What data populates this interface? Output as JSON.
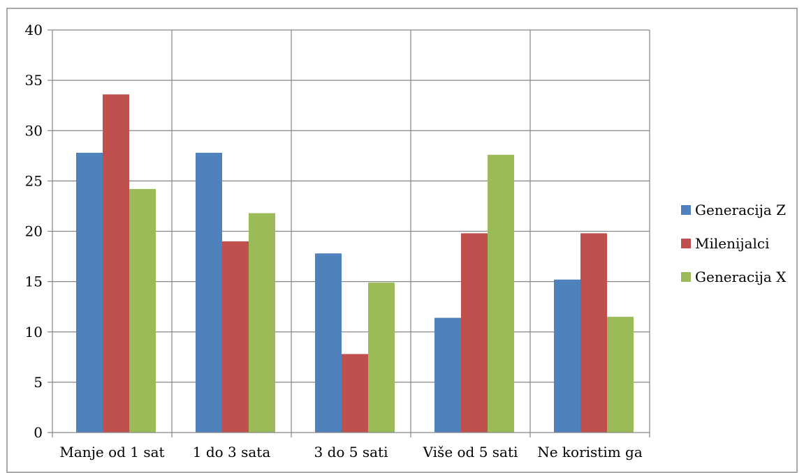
{
  "chart_data": {
    "type": "bar",
    "title": "",
    "xlabel": "",
    "ylabel": "",
    "categories": [
      "Manje od 1 sat",
      "1 do 3 sata",
      "3 do 5 sati",
      "Više od 5 sati",
      "Ne koristim ga"
    ],
    "series": [
      {
        "name": "Generacija Z",
        "color": "#4F81BD",
        "values": [
          27.8,
          27.8,
          17.8,
          11.4,
          15.2
        ]
      },
      {
        "name": "Milenijalci",
        "color": "#C0504D",
        "values": [
          33.6,
          19.0,
          7.8,
          19.8,
          19.8
        ]
      },
      {
        "name": "Generacija X",
        "color": "#9BBB59",
        "values": [
          24.2,
          21.8,
          14.9,
          27.6,
          11.5
        ]
      }
    ],
    "yticks": [
      "0",
      "5",
      "10",
      "15",
      "20",
      "25",
      "30",
      "35",
      "40"
    ],
    "ylim": [
      0,
      40
    ],
    "grid": true,
    "legend_position": "right"
  }
}
